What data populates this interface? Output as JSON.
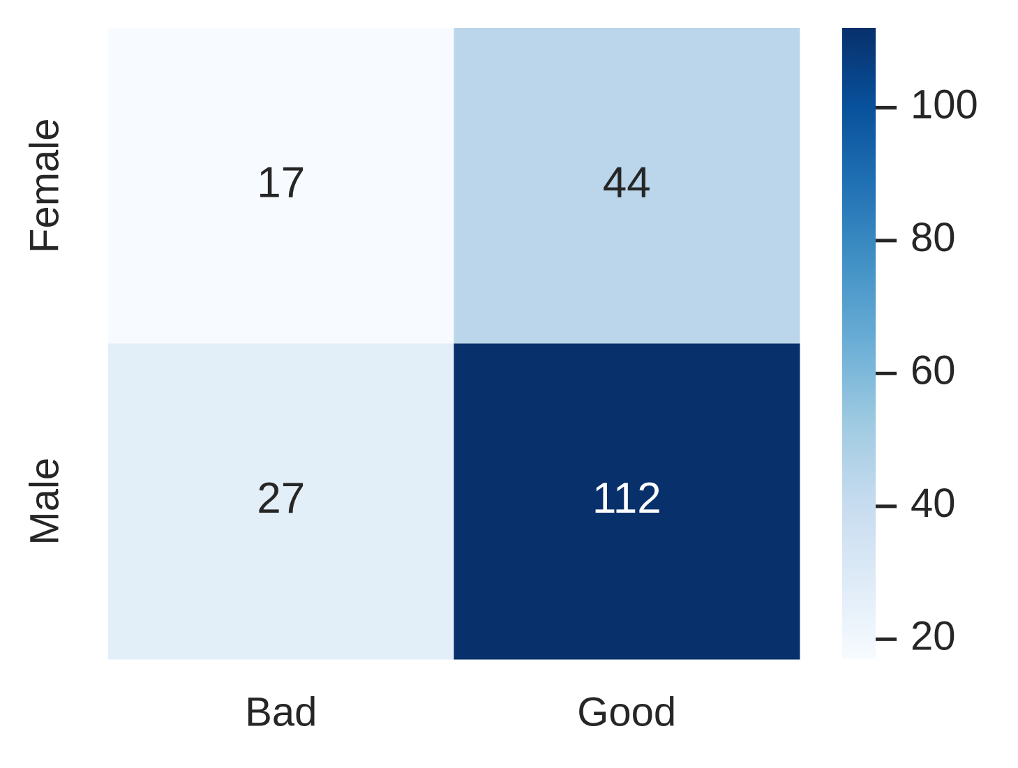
{
  "chart_data": {
    "type": "heatmap",
    "x_categories": [
      "Bad",
      "Good"
    ],
    "y_categories": [
      "Female",
      "Male"
    ],
    "values": [
      [
        17,
        44
      ],
      [
        27,
        112
      ]
    ],
    "colormap": [
      "#f7fbff",
      "#deebf7",
      "#c6dbef",
      "#9ecae1",
      "#6baed6",
      "#4292c6",
      "#2171b5",
      "#08519c",
      "#08306b"
    ],
    "clim": [
      17,
      112
    ],
    "cticks": [
      20,
      40,
      60,
      80,
      100
    ]
  }
}
